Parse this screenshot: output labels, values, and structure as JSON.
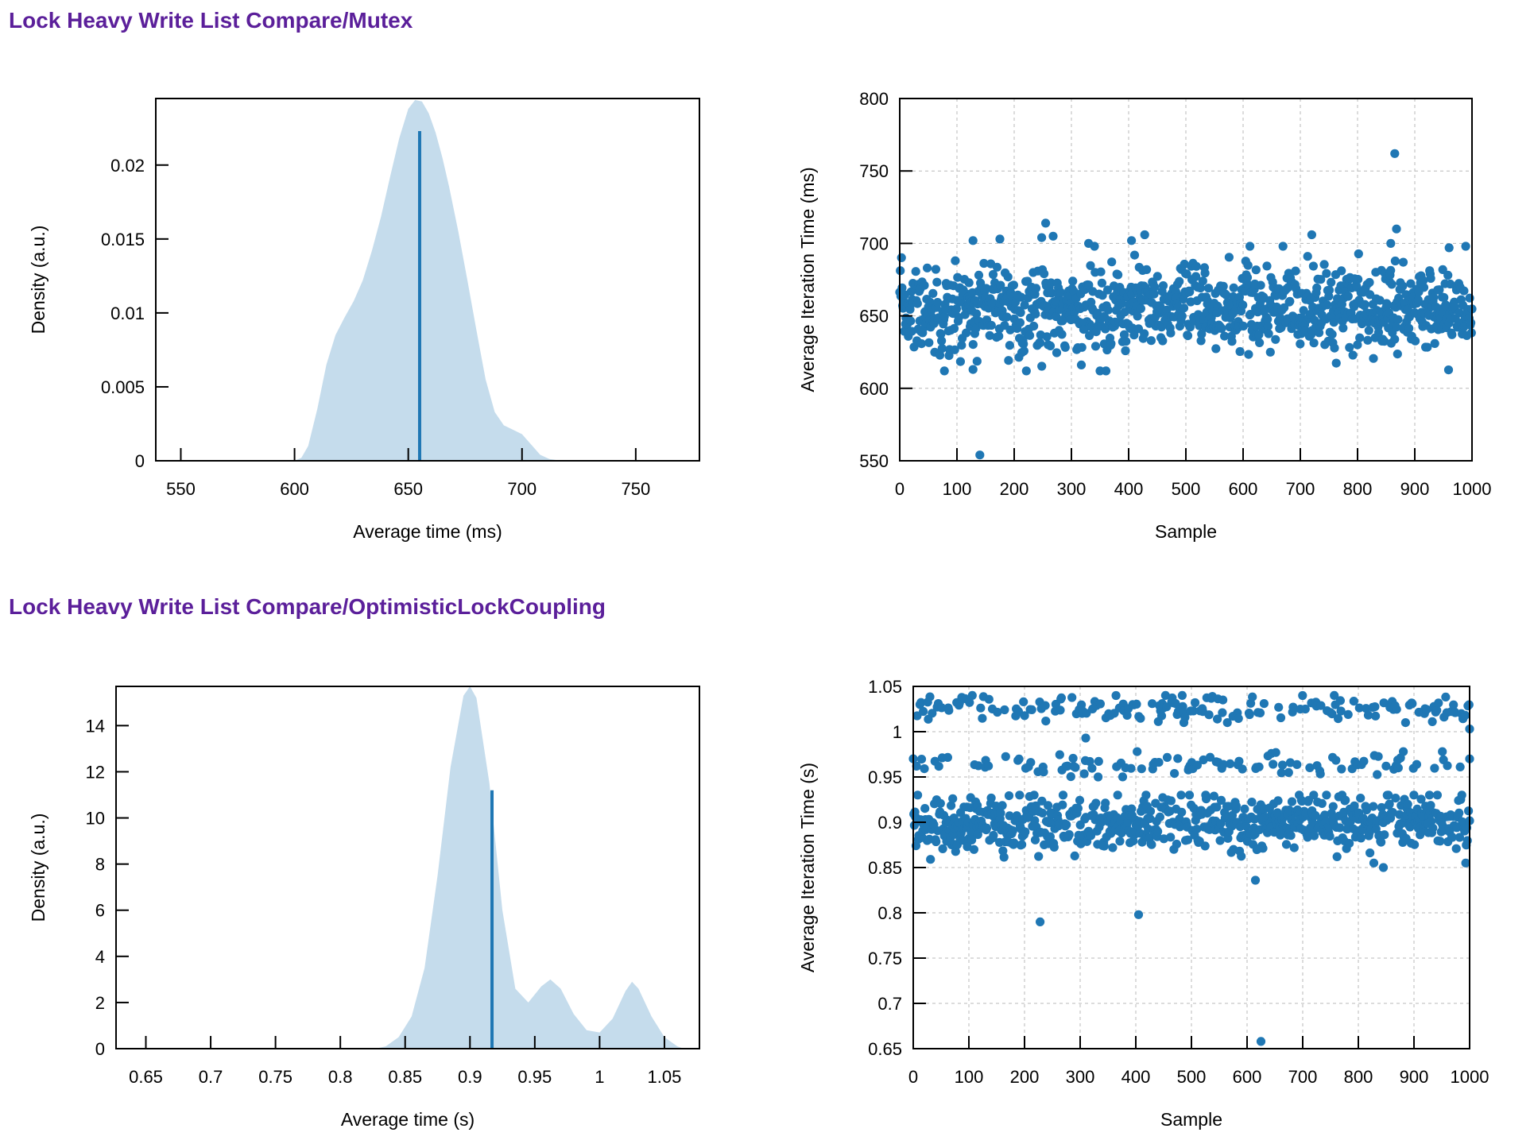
{
  "sections": [
    {
      "title": "Lock Heavy Write List Compare/Mutex"
    },
    {
      "title": "Lock Heavy Write List Compare/OptimisticLockCoupling"
    }
  ],
  "colors": {
    "title": "#5b1f9a",
    "density_fill": "#c5dcec",
    "mean_line": "#1f77b4",
    "scatter_point": "#1f77b4",
    "grid": "#b8b8b8"
  },
  "chart_data": [
    {
      "type": "area",
      "xlabel": "Average time (ms)",
      "ylabel": "Density (a.u.)",
      "xlim": [
        539,
        778
      ],
      "ylim": [
        0,
        0.0245
      ],
      "xticks": [
        550,
        600,
        650,
        700,
        750
      ],
      "xtick_labels": [
        "550",
        "600",
        "650",
        "700",
        "750"
      ],
      "yticks": [
        0,
        0.005,
        0.01,
        0.015,
        0.02
      ],
      "ytick_labels": [
        "0",
        "0.005",
        "0.01",
        "0.015",
        "0.02"
      ],
      "grid": false,
      "density": {
        "x": [
          600,
          603,
          606,
          610,
          614,
          618,
          622,
          626,
          630,
          634,
          638,
          642,
          646,
          650,
          653,
          656,
          659,
          662,
          665,
          668,
          672,
          676,
          680,
          684,
          688,
          692,
          696,
          700,
          704,
          708,
          712,
          716,
          720,
          730
        ],
        "y": [
          0,
          0.0002,
          0.001,
          0.0035,
          0.0065,
          0.0085,
          0.0097,
          0.0108,
          0.0122,
          0.0142,
          0.0165,
          0.0192,
          0.0218,
          0.0238,
          0.0244,
          0.0243,
          0.0235,
          0.0222,
          0.0205,
          0.0185,
          0.0155,
          0.0122,
          0.0088,
          0.0055,
          0.0033,
          0.0024,
          0.0021,
          0.0018,
          0.0011,
          0.0004,
          0.00012,
          3e-05,
          0.0,
          0.0
        ]
      },
      "mean": 655,
      "mean_line_height": 0.0223
    },
    {
      "type": "scatter",
      "xlabel": "Sample",
      "ylabel": "Average Iteration Time (ms)",
      "xlim": [
        0,
        1000
      ],
      "ylim": [
        550,
        800
      ],
      "xticks": [
        0,
        100,
        200,
        300,
        400,
        500,
        600,
        700,
        800,
        900,
        1000
      ],
      "xtick_labels": [
        "0",
        "100",
        "200",
        "300",
        "400",
        "500",
        "600",
        "700",
        "800",
        "900",
        "1000"
      ],
      "yticks": [
        550,
        600,
        650,
        700,
        750,
        800
      ],
      "ytick_labels": [
        "550",
        "600",
        "650",
        "700",
        "750",
        "800"
      ],
      "grid": true,
      "n_points": 1000,
      "center": 655,
      "spread": 15,
      "clip": [
        612,
        698
      ],
      "outliers": [
        {
          "x": 140,
          "y": 554
        },
        {
          "x": 865,
          "y": 762
        },
        {
          "x": 255,
          "y": 714
        },
        {
          "x": 268,
          "y": 705
        },
        {
          "x": 248,
          "y": 704
        },
        {
          "x": 428,
          "y": 706
        },
        {
          "x": 720,
          "y": 706
        },
        {
          "x": 868,
          "y": 710
        },
        {
          "x": 128,
          "y": 702
        },
        {
          "x": 175,
          "y": 703
        },
        {
          "x": 405,
          "y": 702
        },
        {
          "x": 858,
          "y": 700
        },
        {
          "x": 330,
          "y": 700
        },
        {
          "x": 612,
          "y": 698
        },
        {
          "x": 960,
          "y": 697
        },
        {
          "x": 78,
          "y": 612
        },
        {
          "x": 128,
          "y": 613
        },
        {
          "x": 350,
          "y": 612
        }
      ]
    },
    {
      "type": "area",
      "xlabel": "Average time (s)",
      "ylabel": "Density (a.u.)",
      "xlim": [
        0.627,
        1.077
      ],
      "ylim": [
        0,
        15.7
      ],
      "xticks": [
        0.65,
        0.7,
        0.75,
        0.8,
        0.85,
        0.9,
        0.95,
        1,
        1.05
      ],
      "xtick_labels": [
        "0.65",
        "0.7",
        "0.75",
        "0.8",
        "0.85",
        "0.9",
        "0.95",
        "1",
        "1.05"
      ],
      "yticks": [
        0,
        2,
        4,
        6,
        8,
        10,
        12,
        14
      ],
      "ytick_labels": [
        "0",
        "2",
        "4",
        "6",
        "8",
        "10",
        "12",
        "14"
      ],
      "grid": false,
      "density": {
        "x": [
          0.827,
          0.835,
          0.845,
          0.855,
          0.865,
          0.875,
          0.885,
          0.895,
          0.9,
          0.905,
          0.915,
          0.925,
          0.935,
          0.945,
          0.955,
          0.962,
          0.97,
          0.98,
          0.99,
          1.0,
          1.01,
          1.02,
          1.025,
          1.03,
          1.04,
          1.05,
          1.06,
          1.065
        ],
        "y": [
          0,
          0.1,
          0.5,
          1.4,
          3.5,
          7.5,
          12.2,
          15.3,
          15.7,
          15.2,
          11.5,
          6.0,
          2.6,
          2.0,
          2.7,
          3.0,
          2.6,
          1.5,
          0.8,
          0.7,
          1.3,
          2.5,
          2.9,
          2.6,
          1.4,
          0.5,
          0.1,
          0
        ]
      },
      "mean": 0.917,
      "mean_line_height": 11.2
    },
    {
      "type": "scatter",
      "xlabel": "Sample",
      "ylabel": "Average Iteration Time (s)",
      "xlim": [
        0,
        1000
      ],
      "ylim": [
        0.65,
        1.05
      ],
      "xticks": [
        0,
        100,
        200,
        300,
        400,
        500,
        600,
        700,
        800,
        900,
        1000
      ],
      "xtick_labels": [
        "0",
        "100",
        "200",
        "300",
        "400",
        "500",
        "600",
        "700",
        "800",
        "900",
        "1000"
      ],
      "yticks": [
        0.65,
        0.7,
        0.75,
        0.8,
        0.85,
        0.9,
        0.95,
        1,
        1.05
      ],
      "ytick_labels": [
        "0.65",
        "0.7",
        "0.75",
        "0.8",
        "0.85",
        "0.9",
        "0.95",
        "1",
        "1.05"
      ],
      "grid": true,
      "n_points": 1000,
      "clusters": [
        {
          "weight": 0.72,
          "center": 0.9,
          "spread": 0.016,
          "clip": [
            0.855,
            0.93
          ]
        },
        {
          "weight": 0.12,
          "center": 0.963,
          "spread": 0.007,
          "clip": [
            0.95,
            0.978
          ]
        },
        {
          "weight": 0.16,
          "center": 1.025,
          "spread": 0.008,
          "clip": [
            1.01,
            1.04
          ]
        }
      ],
      "outliers": [
        {
          "x": 228,
          "y": 0.79
        },
        {
          "x": 405,
          "y": 0.798
        },
        {
          "x": 625,
          "y": 0.658
        },
        {
          "x": 615,
          "y": 0.836
        },
        {
          "x": 845,
          "y": 0.85
        },
        {
          "x": 1000,
          "y": 1.003
        },
        {
          "x": 1000,
          "y": 0.97
        },
        {
          "x": 310,
          "y": 0.993
        }
      ]
    }
  ]
}
